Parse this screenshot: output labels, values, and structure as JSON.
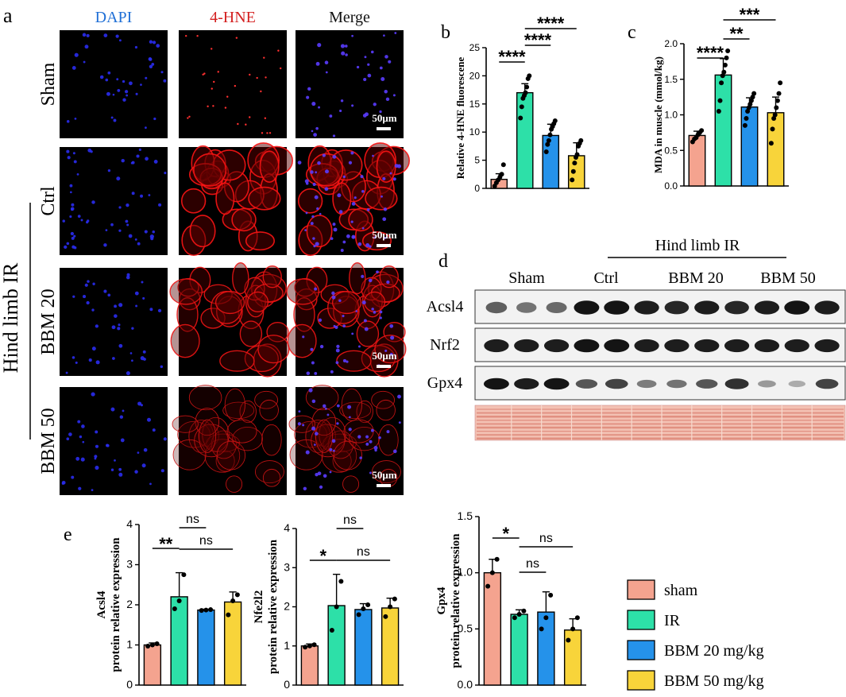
{
  "panel_letters": {
    "a": "a",
    "b": "b",
    "c": "c",
    "d": "d",
    "e": "e"
  },
  "microscopy": {
    "columns": [
      {
        "label": "DAPI",
        "color": "#1f6fd6"
      },
      {
        "label": "4-HNE",
        "color": "#d42020"
      },
      {
        "label": "Merge",
        "color": "#111111"
      }
    ],
    "rows": [
      "Sham",
      "Ctrl",
      "BBM 20",
      "BBM 50"
    ],
    "group_label": "Hind limb IR",
    "scale_bar": "50μm"
  },
  "western_blot": {
    "group_label": "Hind limb IR",
    "lane_groups": [
      "Sham",
      "Ctrl",
      "BBM 20",
      "BBM 50"
    ],
    "bands": [
      "Acsl4",
      "Nrf2",
      "Gpx4"
    ],
    "band_intensity": {
      "Acsl4": [
        0.55,
        0.45,
        0.5,
        0.95,
        0.95,
        0.9,
        0.85,
        0.9,
        0.85,
        0.9,
        0.95,
        0.9
      ],
      "Nrf2": [
        0.9,
        0.9,
        0.9,
        0.95,
        0.95,
        0.9,
        0.9,
        0.9,
        0.9,
        0.9,
        0.9,
        0.9
      ],
      "Gpx4": [
        0.95,
        0.9,
        0.95,
        0.6,
        0.7,
        0.4,
        0.45,
        0.6,
        0.8,
        0.25,
        0.15,
        0.7
      ]
    }
  },
  "legend": [
    {
      "label": "sham",
      "color": "#f4a38f"
    },
    {
      "label": "IR",
      "color": "#2de0a8"
    },
    {
      "label": "BBM 20 mg/kg",
      "color": "#2592ea"
    },
    {
      "label": "BBM 50 mg/kg",
      "color": "#f8d43a"
    }
  ],
  "chart_data": [
    {
      "id": "b",
      "type": "bar",
      "categories": [
        "sham",
        "IR",
        "BBM 20 mg/kg",
        "BBM 50 mg/kg"
      ],
      "values": [
        1.6,
        17.0,
        9.4,
        5.8
      ],
      "errors": [
        1.0,
        1.6,
        2.0,
        2.3
      ],
      "points": [
        [
          0.4,
          1.0,
          1.5,
          2.0,
          2.5,
          4.2
        ],
        [
          12.5,
          14.5,
          16.0,
          16.5,
          17.0,
          18.0,
          19.5,
          20.0
        ],
        [
          6.5,
          7.8,
          8.5,
          9.5,
          10.5,
          11.0,
          11.5,
          12.0
        ],
        [
          1.5,
          3.0,
          4.5,
          5.5,
          6.0,
          7.5,
          8.0,
          8.5
        ]
      ],
      "ylabel": "Relative 4-HNE fluorescene",
      "ylim": [
        0,
        25
      ],
      "yticks": [
        "0",
        "5",
        "10",
        "15",
        "20",
        "25"
      ],
      "sig": [
        {
          "from": 0,
          "to": 1,
          "label": "****"
        },
        {
          "from": 1,
          "to": 2,
          "label": "****"
        },
        {
          "from": 1,
          "to": 3,
          "label": "****"
        }
      ]
    },
    {
      "id": "c",
      "type": "bar",
      "categories": [
        "sham",
        "IR",
        "BBM 20 mg/kg",
        "BBM 50 mg/kg"
      ],
      "values": [
        0.71,
        1.56,
        1.11,
        1.03
      ],
      "errors": [
        0.06,
        0.23,
        0.13,
        0.22
      ],
      "points": [
        [
          0.62,
          0.66,
          0.68,
          0.72,
          0.75,
          0.78
        ],
        [
          1.05,
          1.2,
          1.45,
          1.55,
          1.6,
          1.7,
          1.8,
          1.9
        ],
        [
          0.85,
          0.95,
          1.05,
          1.1,
          1.15,
          1.2,
          1.25,
          1.3
        ],
        [
          0.6,
          0.8,
          0.95,
          1.0,
          1.1,
          1.2,
          1.3,
          1.45
        ]
      ],
      "ylabel": "MDA in muscle (mmol/kg)",
      "ylim": [
        0,
        2.0
      ],
      "yticks": [
        "0.0",
        "0.5",
        "1.0",
        "1.5",
        "2.0"
      ],
      "sig": [
        {
          "from": 0,
          "to": 1,
          "label": "****"
        },
        {
          "from": 1,
          "to": 2,
          "label": "**"
        },
        {
          "from": 1,
          "to": 3,
          "label": "***"
        }
      ]
    },
    {
      "id": "e1",
      "type": "bar",
      "categories": [
        "sham",
        "IR",
        "BBM 20 mg/kg",
        "BBM 50 mg/kg"
      ],
      "values": [
        1.0,
        2.2,
        1.87,
        2.07
      ],
      "errors": [
        0.05,
        0.6,
        0.02,
        0.25
      ],
      "points": [
        [
          0.97,
          1.0,
          1.03
        ],
        [
          1.9,
          2.1,
          2.75
        ],
        [
          1.86,
          1.87,
          1.88
        ],
        [
          1.75,
          2.1,
          2.25
        ]
      ],
      "ylabel": "Acsl4\nprotein relative expression",
      "ylim": [
        0,
        4
      ],
      "yticks": [
        "0",
        "1",
        "2",
        "3",
        "4"
      ],
      "sig": [
        {
          "from": 0,
          "to": 1,
          "label": "**"
        },
        {
          "from": 1,
          "to": 2,
          "label": "ns"
        },
        {
          "from": 1,
          "to": 3,
          "label": "ns"
        }
      ]
    },
    {
      "id": "e2",
      "type": "bar",
      "categories": [
        "sham",
        "IR",
        "BBM 20 mg/kg",
        "BBM 50 mg/kg"
      ],
      "values": [
        1.0,
        2.03,
        1.93,
        1.97
      ],
      "errors": [
        0.05,
        0.8,
        0.15,
        0.25
      ],
      "points": [
        [
          0.97,
          1.0,
          1.03
        ],
        [
          1.4,
          2.0,
          2.65
        ],
        [
          1.8,
          1.95,
          2.05
        ],
        [
          1.75,
          2.0,
          2.2
        ]
      ],
      "ylabel": "Nfe2l2\nprotein relative expression",
      "ylim": [
        0,
        4
      ],
      "yticks": [
        "0",
        "1",
        "2",
        "3",
        "4"
      ],
      "sig": [
        {
          "from": 0,
          "to": 1,
          "label": "*"
        },
        {
          "from": 1,
          "to": 2,
          "label": "ns"
        },
        {
          "from": 1,
          "to": 3,
          "label": "ns"
        }
      ]
    },
    {
      "id": "e3",
      "type": "bar",
      "categories": [
        "sham",
        "IR",
        "BBM 20 mg/kg",
        "BBM 50 mg/kg"
      ],
      "values": [
        1.0,
        0.63,
        0.65,
        0.49
      ],
      "errors": [
        0.12,
        0.04,
        0.18,
        0.1
      ],
      "points": [
        [
          0.88,
          1.0,
          1.12
        ],
        [
          0.6,
          0.63,
          0.66
        ],
        [
          0.5,
          0.6,
          0.8
        ],
        [
          0.4,
          0.5,
          0.6
        ]
      ],
      "ylabel": "Gpx4\nprotein relative expression",
      "ylim": [
        0,
        1.5
      ],
      "yticks": [
        "0.0",
        "0.5",
        "1.0",
        "1.5"
      ],
      "sig": [
        {
          "from": 0,
          "to": 1,
          "label": "*"
        },
        {
          "from": 1,
          "to": 2,
          "label": "ns"
        },
        {
          "from": 1,
          "to": 3,
          "label": "ns"
        }
      ]
    }
  ]
}
